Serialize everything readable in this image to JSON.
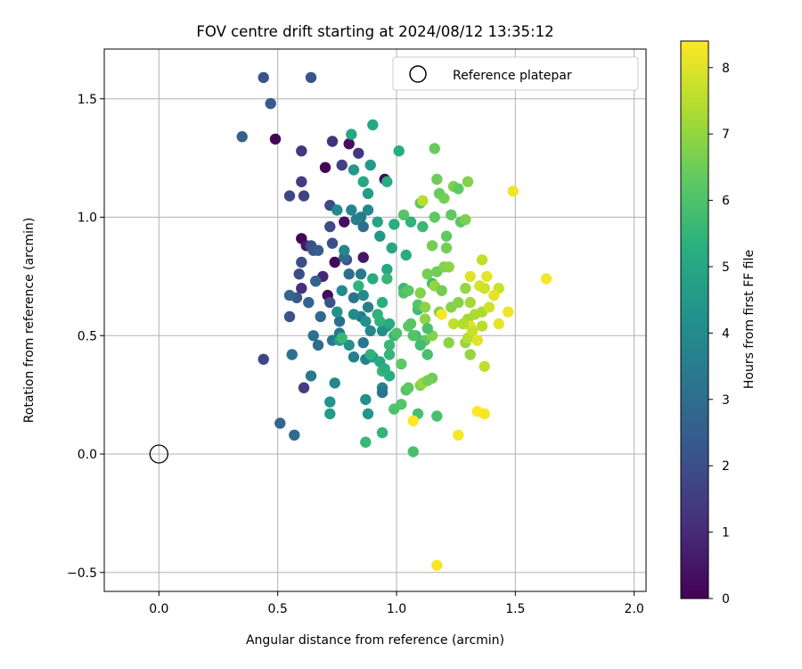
{
  "chart_data": {
    "type": "scatter",
    "title": "FOV centre drift starting at 2024/08/12 13:35:12",
    "xlabel": "Angular distance from reference (arcmin)",
    "ylabel": "Rotation from reference (arcmin)",
    "xlim": [
      -0.23,
      2.05
    ],
    "ylim": [
      -0.58,
      1.71
    ],
    "xticks": [
      0.0,
      0.5,
      1.0,
      1.5,
      2.0
    ],
    "xtick_labels": [
      "0.0",
      "0.5",
      "1.0",
      "1.5",
      "2.0"
    ],
    "yticks": [
      -0.5,
      0.0,
      0.5,
      1.0,
      1.5
    ],
    "ytick_labels": [
      "−0.5",
      "0.0",
      "0.5",
      "1.0",
      "1.5"
    ],
    "grid": true,
    "legend": {
      "placement": "top-right",
      "entries": [
        {
          "label": "Reference platepar",
          "marker": "open-circle",
          "x": 0.0,
          "y": 0.0
        }
      ]
    },
    "colorbar": {
      "label": "Hours from first FF file",
      "colormap": "viridis",
      "range": [
        0,
        8.4
      ],
      "ticks": [
        0,
        1,
        2,
        3,
        4,
        5,
        6,
        7,
        8
      ],
      "tick_labels": [
        "0",
        "1",
        "2",
        "3",
        "4",
        "5",
        "6",
        "7",
        "8"
      ]
    },
    "points": [
      [
        0.49,
        1.33,
        0.05
      ],
      [
        0.7,
        1.21,
        0.05
      ],
      [
        0.74,
        0.81,
        0.1
      ],
      [
        0.6,
        0.91,
        0.1
      ],
      [
        0.71,
        0.67,
        0.2
      ],
      [
        0.8,
        1.31,
        0.3
      ],
      [
        0.95,
        1.16,
        0.1
      ],
      [
        0.78,
        0.98,
        0.3
      ],
      [
        0.86,
        0.83,
        0.5
      ],
      [
        0.62,
        0.88,
        0.6
      ],
      [
        0.69,
        0.75,
        0.9
      ],
      [
        0.6,
        0.7,
        1.1
      ],
      [
        0.73,
        1.32,
        1.2
      ],
      [
        0.6,
        1.28,
        1.3
      ],
      [
        0.84,
        1.27,
        1.4
      ],
      [
        0.6,
        1.15,
        1.5
      ],
      [
        0.61,
        0.28,
        1.6
      ],
      [
        0.77,
        1.22,
        1.6
      ],
      [
        0.55,
        1.09,
        1.8
      ],
      [
        0.61,
        1.09,
        1.7
      ],
      [
        0.72,
        1.05,
        1.9
      ],
      [
        0.72,
        0.96,
        1.9
      ],
      [
        0.64,
        0.88,
        2.0
      ],
      [
        0.6,
        0.81,
        2.0
      ],
      [
        0.65,
        0.86,
        2.2
      ],
      [
        0.73,
        0.89,
        2.0
      ],
      [
        0.79,
        0.82,
        2.1
      ],
      [
        0.59,
        0.76,
        2.0
      ],
      [
        0.66,
        0.73,
        2.1
      ],
      [
        0.58,
        0.66,
        2.3
      ],
      [
        0.72,
        0.64,
        2.1
      ],
      [
        0.55,
        0.58,
        2.1
      ],
      [
        0.44,
        0.4,
        1.8
      ],
      [
        0.44,
        1.59,
        2.1
      ],
      [
        0.64,
        1.59,
        2.2
      ],
      [
        0.47,
        1.48,
        2.4
      ],
      [
        0.35,
        1.34,
        2.6
      ],
      [
        0.67,
        0.86,
        2.5
      ],
      [
        0.66,
        0.73,
        2.7
      ],
      [
        0.55,
        0.67,
        2.8
      ],
      [
        0.63,
        0.64,
        2.7
      ],
      [
        0.68,
        0.58,
        2.9
      ],
      [
        0.76,
        0.56,
        3.1
      ],
      [
        0.65,
        0.5,
        3.1
      ],
      [
        0.67,
        0.46,
        3.0
      ],
      [
        0.76,
        0.51,
        3.3
      ],
      [
        0.85,
        0.58,
        3.4
      ],
      [
        0.73,
        0.48,
        3.4
      ],
      [
        0.86,
        0.47,
        3.3
      ],
      [
        0.56,
        0.42,
        3.1
      ],
      [
        0.51,
        0.13,
        2.8
      ],
      [
        0.57,
        0.08,
        2.9
      ],
      [
        0.64,
        0.33,
        3.4
      ],
      [
        0.82,
        0.41,
        3.6
      ],
      [
        0.87,
        0.4,
        3.7
      ],
      [
        0.74,
        0.3,
        3.9
      ],
      [
        0.94,
        0.28,
        3.7
      ],
      [
        0.94,
        0.26,
        3.2
      ],
      [
        0.78,
        0.83,
        2.9
      ],
      [
        0.8,
        0.76,
        3.0
      ],
      [
        0.85,
        0.76,
        3.4
      ],
      [
        0.82,
        0.66,
        3.2
      ],
      [
        0.88,
        0.62,
        3.6
      ],
      [
        0.85,
        1.0,
        3.4
      ],
      [
        0.86,
        0.96,
        3.1
      ],
      [
        0.83,
        0.99,
        3.6
      ],
      [
        0.88,
        1.03,
        3.9
      ],
      [
        0.81,
        1.03,
        3.8
      ],
      [
        0.75,
        1.03,
        3.9
      ],
      [
        0.78,
        0.86,
        3.8
      ],
      [
        0.77,
        0.69,
        4.0
      ],
      [
        0.82,
        0.59,
        4.0
      ],
      [
        0.89,
        0.52,
        3.8
      ],
      [
        0.86,
        0.67,
        4.0
      ],
      [
        0.8,
        0.46,
        4.2
      ],
      [
        0.87,
        0.56,
        4.2
      ],
      [
        0.96,
        0.54,
        3.9
      ],
      [
        0.75,
        0.6,
        4.3
      ],
      [
        0.94,
        0.52,
        4.2
      ],
      [
        0.9,
        0.41,
        4.5
      ],
      [
        0.87,
        0.23,
        4.2
      ],
      [
        0.88,
        0.17,
        4.4
      ],
      [
        0.72,
        0.22,
        4.3
      ],
      [
        0.72,
        0.17,
        4.6
      ],
      [
        0.76,
        0.48,
        4.6
      ],
      [
        0.93,
        0.92,
        4.4
      ],
      [
        0.88,
        1.1,
        4.6
      ],
      [
        0.82,
        1.2,
        4.5
      ],
      [
        0.89,
        1.22,
        4.5
      ],
      [
        0.86,
        1.15,
        5.0
      ],
      [
        0.81,
        1.35,
        5.0
      ],
      [
        0.9,
        1.39,
        5.0
      ],
      [
        0.96,
        1.15,
        5.2
      ],
      [
        0.98,
        0.87,
        5.0
      ],
      [
        0.96,
        0.78,
        5.0
      ],
      [
        0.9,
        0.74,
        5.2
      ],
      [
        0.92,
        0.59,
        5.4
      ],
      [
        0.97,
        0.55,
        5.1
      ],
      [
        0.99,
        0.5,
        5.5
      ],
      [
        0.89,
        0.42,
        5.4
      ],
      [
        0.93,
        0.39,
        5.1
      ],
      [
        0.97,
        0.33,
        5.2
      ],
      [
        0.94,
        0.35,
        5.6
      ],
      [
        0.97,
        0.46,
        5.6
      ],
      [
        0.95,
        0.36,
        5.3
      ],
      [
        0.84,
        0.71,
        5.4
      ],
      [
        0.94,
        0.64,
        5.3
      ],
      [
        0.93,
        0.56,
        5.4
      ],
      [
        0.77,
        0.49,
        5.6
      ],
      [
        0.97,
        0.42,
        5.5
      ],
      [
        0.94,
        0.09,
        5.5
      ],
      [
        0.87,
        0.05,
        5.6
      ],
      [
        1.01,
        1.28,
        5.2
      ],
      [
        1.06,
        0.98,
        5.4
      ],
      [
        1.04,
        0.84,
        5.2
      ],
      [
        1.03,
        0.7,
        5.6
      ],
      [
        0.96,
        0.74,
        5.6
      ],
      [
        1.09,
        0.61,
        5.7
      ],
      [
        1.08,
        0.5,
        5.6
      ],
      [
        1.15,
        0.72,
        5.8
      ],
      [
        1.03,
        0.68,
        6.0
      ],
      [
        1.07,
        0.5,
        6.1
      ],
      [
        1.06,
        0.55,
        6.2
      ],
      [
        1.12,
        0.48,
        6.3
      ],
      [
        1.13,
        0.42,
        5.9
      ],
      [
        1.1,
        0.46,
        5.8
      ],
      [
        1.09,
        0.63,
        6.1
      ],
      [
        1.0,
        0.51,
        6.0
      ],
      [
        1.02,
        0.38,
        6.3
      ],
      [
        1.04,
        0.27,
        6.0
      ],
      [
        1.02,
        0.21,
        6.1
      ],
      [
        1.05,
        0.28,
        6.3
      ],
      [
        1.09,
        0.17,
        5.9
      ],
      [
        1.17,
        0.16,
        5.9
      ],
      [
        1.07,
        0.01,
        5.9
      ],
      [
        0.99,
        0.19,
        6.0
      ],
      [
        1.15,
        0.32,
        6.5
      ],
      [
        1.1,
        0.29,
        6.7
      ],
      [
        1.05,
        0.54,
        6.2
      ],
      [
        1.1,
        1.06,
        6.2
      ],
      [
        1.16,
        1.29,
        6.4
      ],
      [
        1.17,
        1.16,
        6.5
      ],
      [
        1.18,
        1.1,
        6.4
      ],
      [
        1.16,
        1.0,
        6.3
      ],
      [
        1.24,
        1.13,
        6.7
      ],
      [
        1.26,
        1.12,
        6.3
      ],
      [
        1.23,
        1.01,
        6.3
      ],
      [
        1.27,
        0.98,
        6.2
      ],
      [
        1.3,
        1.15,
        6.8
      ],
      [
        1.2,
        1.08,
        6.6
      ],
      [
        1.21,
        0.92,
        6.3
      ],
      [
        1.15,
        0.88,
        6.6
      ],
      [
        1.17,
        0.77,
        6.5
      ],
      [
        1.21,
        0.87,
        6.6
      ],
      [
        1.29,
        0.99,
        6.7
      ],
      [
        1.2,
        0.79,
        6.8
      ],
      [
        1.22,
        0.79,
        6.9
      ],
      [
        1.13,
        0.76,
        6.6
      ],
      [
        1.1,
        0.68,
        6.8
      ],
      [
        1.16,
        0.71,
        7.0
      ],
      [
        1.19,
        0.69,
        6.6
      ],
      [
        1.26,
        0.64,
        6.8
      ],
      [
        1.29,
        0.7,
        7.0
      ],
      [
        1.23,
        0.62,
        6.8
      ],
      [
        1.18,
        0.6,
        6.8
      ],
      [
        1.12,
        0.62,
        6.9
      ],
      [
        1.12,
        0.57,
        6.9
      ],
      [
        1.15,
        0.5,
        6.8
      ],
      [
        1.22,
        0.47,
        6.9
      ],
      [
        1.29,
        0.47,
        7.1
      ],
      [
        1.31,
        0.42,
        7.0
      ],
      [
        1.11,
        0.3,
        7.1
      ],
      [
        1.3,
        0.57,
        7.2
      ],
      [
        1.31,
        0.64,
        7.2
      ],
      [
        1.33,
        0.59,
        7.3
      ],
      [
        1.36,
        0.6,
        7.3
      ],
      [
        1.3,
        0.49,
        7.5
      ],
      [
        1.36,
        0.54,
        7.5
      ],
      [
        1.36,
        0.82,
        7.6
      ],
      [
        1.37,
        0.37,
        7.6
      ],
      [
        1.43,
        0.7,
        7.7
      ],
      [
        1.39,
        0.62,
        7.8
      ],
      [
        1.35,
        0.71,
        7.9
      ],
      [
        1.37,
        0.7,
        7.8
      ],
      [
        1.31,
        0.75,
        8.0
      ],
      [
        1.38,
        0.75,
        8.1
      ],
      [
        1.31,
        0.54,
        8.0
      ],
      [
        1.34,
        0.48,
        8.0
      ],
      [
        1.43,
        0.55,
        8.1
      ],
      [
        1.41,
        0.67,
        8.1
      ],
      [
        1.47,
        0.6,
        8.2
      ],
      [
        1.49,
        1.11,
        8.2
      ],
      [
        1.63,
        0.74,
        8.3
      ],
      [
        1.26,
        0.08,
        8.3
      ],
      [
        1.34,
        0.18,
        8.4
      ],
      [
        1.37,
        0.17,
        8.3
      ],
      [
        1.07,
        0.14,
        8.4
      ],
      [
        1.19,
        0.59,
        8.3
      ],
      [
        1.17,
        -0.47,
        8.3
      ],
      [
        1.11,
        1.07,
        7.5
      ],
      [
        1.32,
        0.52,
        7.7
      ],
      [
        1.24,
        0.55,
        7.6
      ],
      [
        1.28,
        0.55,
        7.4
      ],
      [
        1.13,
        0.31,
        6.6
      ],
      [
        1.05,
        0.69,
        6.2
      ],
      [
        1.13,
        0.53,
        5.9
      ],
      [
        1.03,
        1.01,
        6.1
      ],
      [
        1.11,
        0.96,
        5.6
      ],
      [
        0.99,
        0.97,
        5.2
      ],
      [
        0.92,
        0.98,
        4.9
      ]
    ]
  }
}
